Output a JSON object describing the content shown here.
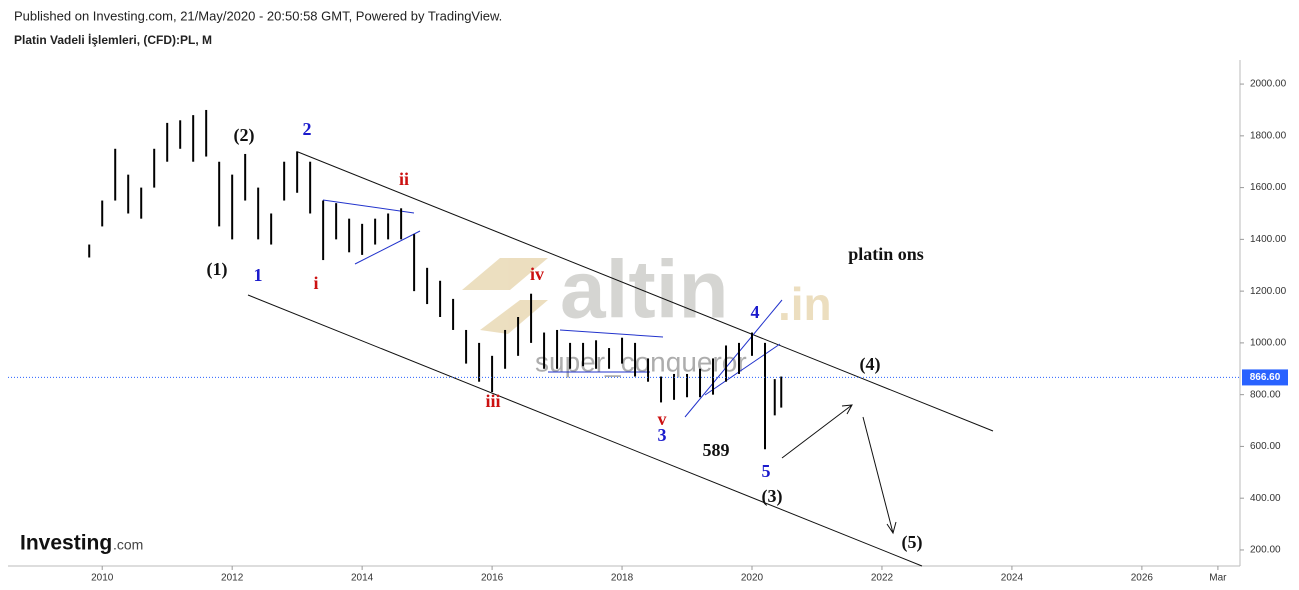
{
  "header": {
    "published": "Published on Investing.com, 21/May/2020 - 20:50:58 GMT, Powered by TradingView.",
    "symbol": "Platin Vadeli İşlemleri, (CFD):PL, M"
  },
  "watermark": {
    "brand": "altin",
    "suffix": ".in",
    "author": "super_conqueror"
  },
  "logo": {
    "name": "Investing",
    "suffix": ".com"
  },
  "chart_data": {
    "type": "ohlc",
    "x": [
      2009.8,
      2010.0,
      2010.2,
      2010.4,
      2010.6,
      2010.8,
      2011.0,
      2011.2,
      2011.4,
      2011.6,
      2011.8,
      2012.0,
      2012.2,
      2012.4,
      2012.6,
      2012.8,
      2013.0,
      2013.2,
      2013.4,
      2013.6,
      2013.8,
      2014.0,
      2014.2,
      2014.4,
      2014.6,
      2014.8,
      2015.0,
      2015.2,
      2015.4,
      2015.6,
      2015.8,
      2016.0,
      2016.2,
      2016.4,
      2016.6,
      2016.8,
      2017.0,
      2017.2,
      2017.4,
      2017.6,
      2017.8,
      2018.0,
      2018.2,
      2018.4,
      2018.6,
      2018.8,
      2019.0,
      2019.2,
      2019.4,
      2019.6,
      2019.8,
      2020.0,
      2020.2,
      2020.35,
      2020.45
    ],
    "high": [
      1380,
      1550,
      1750,
      1650,
      1600,
      1750,
      1850,
      1860,
      1880,
      1900,
      1700,
      1650,
      1730,
      1600,
      1500,
      1700,
      1740,
      1700,
      1550,
      1540,
      1480,
      1460,
      1480,
      1500,
      1520,
      1420,
      1290,
      1240,
      1170,
      1050,
      1000,
      950,
      1050,
      1100,
      1190,
      1040,
      1050,
      1000,
      1000,
      1010,
      980,
      1020,
      1000,
      940,
      870,
      880,
      880,
      900,
      940,
      990,
      1000,
      1040,
      1000,
      860,
      870
    ],
    "low": [
      1330,
      1450,
      1550,
      1500,
      1480,
      1600,
      1700,
      1750,
      1700,
      1720,
      1450,
      1400,
      1550,
      1400,
      1380,
      1550,
      1580,
      1500,
      1320,
      1400,
      1350,
      1340,
      1380,
      1400,
      1400,
      1200,
      1150,
      1100,
      1050,
      920,
      850,
      810,
      900,
      950,
      1000,
      900,
      900,
      900,
      910,
      900,
      900,
      920,
      870,
      850,
      770,
      780,
      790,
      790,
      800,
      850,
      880,
      950,
      589,
      720,
      750
    ],
    "color": "#000000",
    "last_price": {
      "value": 866.6,
      "label": "866.60"
    },
    "last_color": "#2962ff",
    "xlim": [
      2008.55,
      2027.51
    ],
    "ylim": [
      138,
      2093
    ],
    "xticks": [
      2010,
      2012,
      2014,
      2016,
      2018,
      2020,
      2022,
      2024,
      2026,
      {
        "value": 2027.17,
        "label": "Mar"
      }
    ],
    "yticks": [
      {
        "value": 200,
        "label": "200.00"
      },
      {
        "value": 400,
        "label": "400.00"
      },
      {
        "value": 600,
        "label": "600.00"
      },
      {
        "value": 800,
        "label": "800.00"
      },
      {
        "value": 1000,
        "label": "1000.00"
      },
      {
        "value": 1200,
        "label": "1200.00"
      },
      {
        "value": 1400,
        "label": "1400.00"
      },
      {
        "value": 1600,
        "label": "1600.00"
      },
      {
        "value": 1800,
        "label": "1800.00"
      },
      {
        "value": 2000,
        "label": "2000.00"
      }
    ],
    "annotations": [
      {
        "text": "(2)",
        "color": "#111111"
      },
      {
        "text": "2",
        "color": "#1a1acc"
      },
      {
        "text": "ii",
        "color": "#cc1111"
      },
      {
        "text": "i",
        "color": "#cc1111"
      },
      {
        "text": "(1)",
        "color": "#111111"
      },
      {
        "text": "1",
        "color": "#1a1acc"
      },
      {
        "text": "iv",
        "color": "#cc1111"
      },
      {
        "text": "iii",
        "color": "#cc1111"
      },
      {
        "text": "v",
        "color": "#cc1111"
      },
      {
        "text": "3",
        "color": "#1a1acc"
      },
      {
        "text": "4",
        "color": "#1a1acc"
      },
      {
        "text": "5",
        "color": "#1a1acc"
      },
      {
        "text": "589",
        "color": "#111111"
      },
      {
        "text": "(3)",
        "color": "#111111"
      },
      {
        "text": "(4)",
        "color": "#111111"
      },
      {
        "text": "(5)",
        "color": "#111111"
      },
      {
        "text": "platin ons",
        "color": "#111111"
      }
    ]
  }
}
